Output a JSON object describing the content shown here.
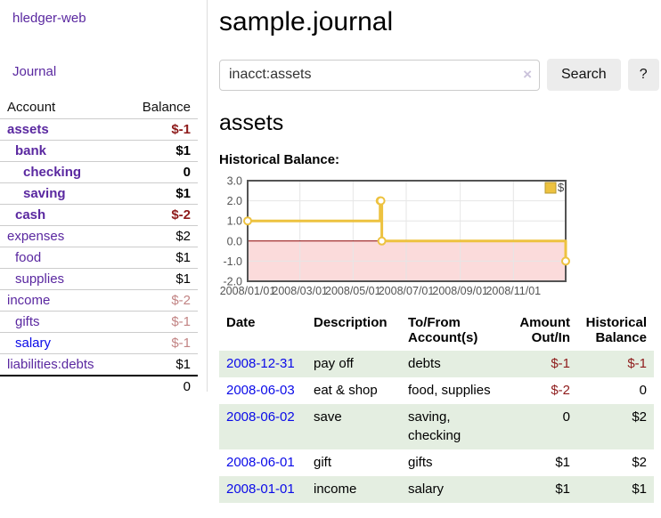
{
  "app": {
    "brand": "hledger-web",
    "nav_journal": "Journal"
  },
  "sidebar": {
    "headers": {
      "account": "Account",
      "balance": "Balance"
    },
    "accounts": [
      {
        "name": "assets",
        "level": 0,
        "bold": true,
        "balance": "$-1",
        "balance_style": "neg-strong"
      },
      {
        "name": "bank",
        "level": 1,
        "bold": true,
        "balance": "$1",
        "balance_style": ""
      },
      {
        "name": "checking",
        "level": 2,
        "bold": true,
        "balance": "0",
        "balance_style": ""
      },
      {
        "name": "saving",
        "level": 2,
        "bold": true,
        "balance": "$1",
        "balance_style": ""
      },
      {
        "name": "cash",
        "level": 1,
        "bold": true,
        "balance": "$-2",
        "balance_style": "neg-strong"
      },
      {
        "name": "expenses",
        "level": 0,
        "bold": false,
        "balance": "$2",
        "balance_style": ""
      },
      {
        "name": "food",
        "level": 1,
        "bold": false,
        "balance": "$1",
        "balance_style": ""
      },
      {
        "name": "supplies",
        "level": 1,
        "bold": false,
        "balance": "$1",
        "balance_style": ""
      },
      {
        "name": "income",
        "level": 0,
        "bold": false,
        "balance": "$-2",
        "balance_style": "neg-soft"
      },
      {
        "name": "gifts",
        "level": 1,
        "bold": false,
        "balance": "$-1",
        "balance_style": "neg-soft"
      },
      {
        "name": "salary",
        "level": 1,
        "bold": false,
        "link_color": "blue",
        "balance": "$-1",
        "balance_style": "neg-soft"
      },
      {
        "name": "liabilities:debts",
        "level": 0,
        "bold": false,
        "balance": "$1",
        "balance_style": ""
      }
    ],
    "total": "0"
  },
  "header": {
    "title": "sample.journal"
  },
  "search": {
    "value": "inacct:assets",
    "clear_icon": "×",
    "button_label": "Search",
    "help_label": "?"
  },
  "register": {
    "heading": "assets",
    "chart_label": "Historical Balance:",
    "table": {
      "headers": {
        "date": "Date",
        "sort_icon": "∧",
        "description": "Description",
        "accounts": "To/From Account(s)",
        "amount": "Amount Out/In",
        "balance": "Historical Balance"
      },
      "rows": [
        {
          "date": "2008-12-31",
          "description": "pay off",
          "accounts": "debts",
          "amount": "$-1",
          "amount_neg": true,
          "balance": "$-1",
          "balance_neg": true
        },
        {
          "date": "2008-06-03",
          "description": "eat & shop",
          "accounts": "food, supplies",
          "amount": "$-2",
          "amount_neg": true,
          "balance": "0",
          "balance_neg": false
        },
        {
          "date": "2008-06-02",
          "description": "save",
          "accounts": "saving, checking",
          "amount": "0",
          "amount_neg": false,
          "balance": "$2",
          "balance_neg": false
        },
        {
          "date": "2008-06-01",
          "description": "gift",
          "accounts": "gifts",
          "amount": "$1",
          "amount_neg": false,
          "balance": "$2",
          "balance_neg": false
        },
        {
          "date": "2008-01-01",
          "description": "income",
          "accounts": "salary",
          "amount": "$1",
          "amount_neg": false,
          "balance": "$1",
          "balance_neg": false
        }
      ]
    }
  },
  "chart_data": {
    "type": "line",
    "subtype": "step",
    "title": "Historical Balance",
    "legend": [
      {
        "label": "$",
        "color": "#EDC240"
      }
    ],
    "points": [
      {
        "x": "2008-01-01",
        "y": 1
      },
      {
        "x": "2008-06-01",
        "y": 2
      },
      {
        "x": "2008-06-02",
        "y": 2
      },
      {
        "x": "2008-06-03",
        "y": 0
      },
      {
        "x": "2008-12-31",
        "y": -1
      }
    ],
    "x_range": [
      "2008-01-01",
      "2008-12-31"
    ],
    "x_ticks": [
      "2008/01/01",
      "2008/03/01",
      "2008/05/01",
      "2008/07/01",
      "2008/09/01",
      "2008/11/01"
    ],
    "y_ticks": [
      "3.0",
      "2.0",
      "1.0",
      "0.0",
      "-1.0",
      "-2.0"
    ],
    "ylim": [
      -2,
      3
    ],
    "grid": true,
    "legend_position": "top-right",
    "colors": {
      "line": "#EDC240",
      "marker_fill": "#ffffff",
      "negative_region": "#fbdbdb",
      "zero_line": "#8b0000",
      "grid_line": "#e6e6e6",
      "border": "#545454",
      "tick_text": "#545454"
    }
  }
}
